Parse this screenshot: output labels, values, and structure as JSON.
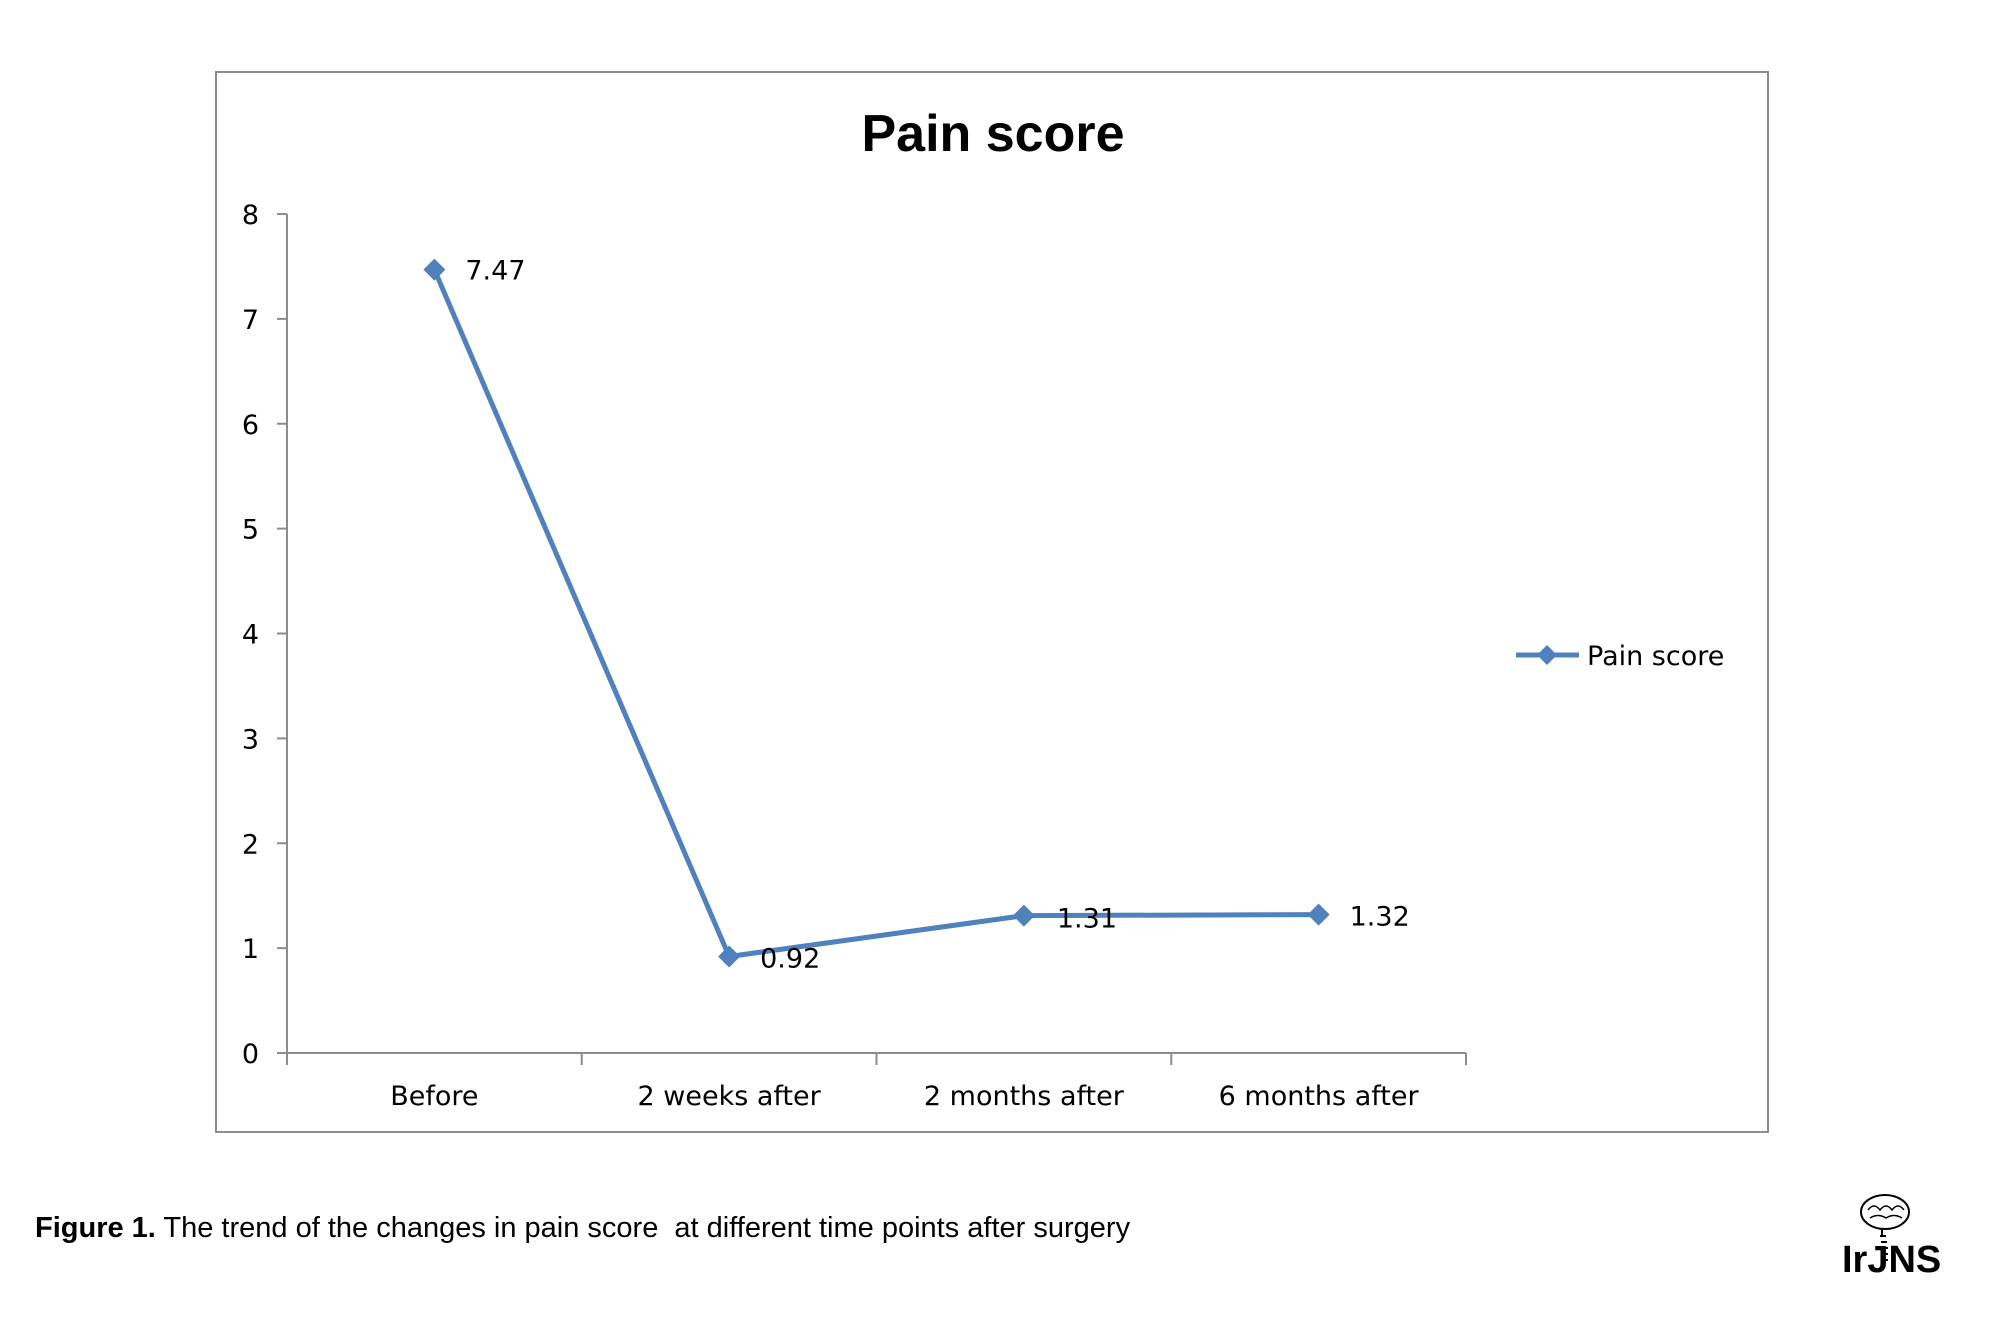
{
  "chart_data": {
    "type": "line",
    "title": "Pain score",
    "categories": [
      "Before",
      "2 weeks after",
      "2 months after",
      "6 months after"
    ],
    "series": [
      {
        "name": "Pain score",
        "values": [
          7.47,
          0.92,
          1.31,
          1.32
        ],
        "color": "#4f81bd"
      }
    ],
    "data_labels": [
      "7.47",
      "0.92",
      "1.31",
      "1.32"
    ],
    "y_ticks": [
      0,
      1,
      2,
      3,
      4,
      5,
      6,
      7,
      8
    ],
    "ylim": [
      0,
      8
    ],
    "grid": false,
    "legend_position": "right",
    "marker": "diamond"
  },
  "caption": {
    "label": "Figure 1.",
    "text": " The trend of the changes in pain score  at different time points after surgery"
  },
  "logo": {
    "text": "IrJNS",
    "icon": "brain-spine-logo-icon"
  }
}
